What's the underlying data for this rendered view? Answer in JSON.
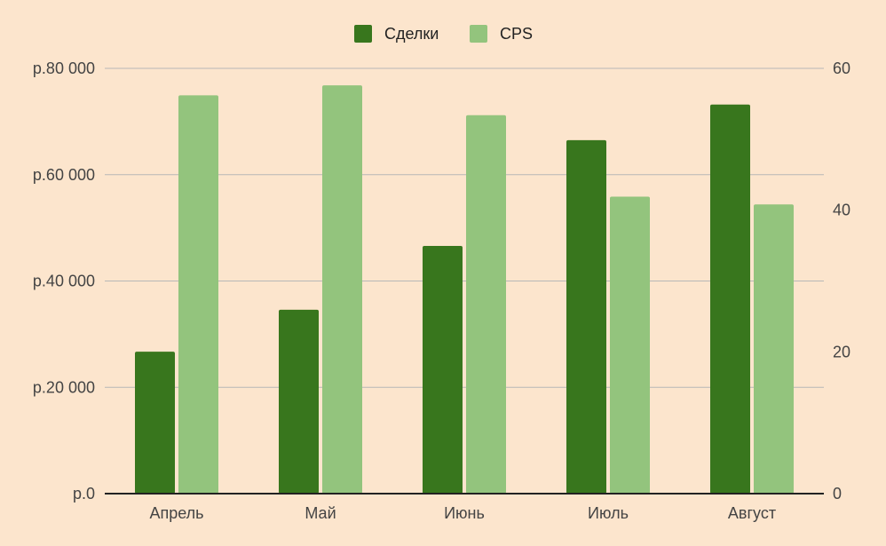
{
  "chart_data": {
    "type": "bar",
    "categories": [
      "Апрель",
      "Май",
      "Июнь",
      "Июль",
      "Август"
    ],
    "series": [
      {
        "name": "Сделки",
        "axis": "left",
        "color": "#38761d",
        "values": [
          26700,
          34600,
          46600,
          66500,
          73200
        ]
      },
      {
        "name": "CPS",
        "axis": "right",
        "color": "#93c47d",
        "values": [
          56.2,
          57.6,
          53.4,
          41.9,
          40.8
        ]
      }
    ],
    "y_left": {
      "range": [
        0,
        80000
      ],
      "ticks": [
        0,
        20000,
        40000,
        60000,
        80000
      ],
      "tick_labels": [
        "р.0",
        "р.20 000",
        "р.40 000",
        "р.60 000",
        "р.80 000"
      ]
    },
    "y_right": {
      "range": [
        0,
        60
      ],
      "ticks": [
        0,
        20,
        40,
        60
      ],
      "tick_labels": [
        "0",
        "20",
        "40",
        "60"
      ]
    },
    "grid": true,
    "legend_position": "top-center",
    "background_color": "#fce5cd",
    "gridline_color": "#b7b7b7"
  }
}
